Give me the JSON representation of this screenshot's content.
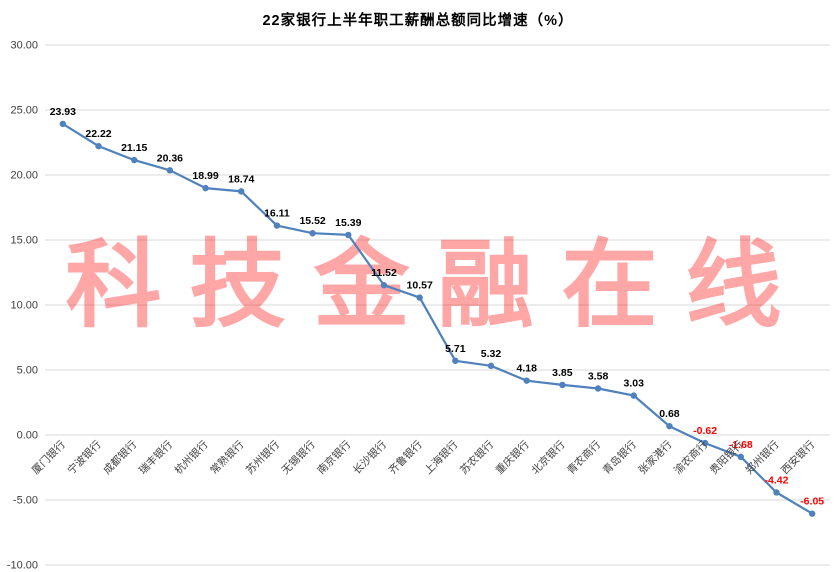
{
  "chart_data": {
    "type": "line",
    "title": "22家银行上半年职工薪酬总额同比增速（%）",
    "categories": [
      "厦门银行",
      "宁波银行",
      "成都银行",
      "瑞丰银行",
      "杭州银行",
      "常熟银行",
      "苏州银行",
      "无锡银行",
      "南京银行",
      "长沙银行",
      "齐鲁银行",
      "上海银行",
      "苏农银行",
      "重庆银行",
      "北京银行",
      "青农商行",
      "青岛银行",
      "张家港行",
      "渝农商行",
      "贵阳银行",
      "郑州银行",
      "西安银行"
    ],
    "values": [
      23.93,
      22.22,
      21.15,
      20.36,
      18.99,
      18.74,
      16.11,
      15.52,
      15.39,
      11.52,
      10.57,
      5.71,
      5.32,
      4.18,
      3.85,
      3.58,
      3.03,
      0.68,
      -0.62,
      -1.68,
      -4.42,
      -6.05
    ],
    "ylim": [
      -10,
      30
    ],
    "yticks": [
      30,
      25,
      20,
      15,
      10,
      5,
      0,
      -5,
      -10
    ],
    "ytick_labels": [
      "30.00",
      "25.00",
      "20.00",
      "15.00",
      "10.00",
      "5.00",
      "0.00",
      "-5.00",
      "-10.00"
    ],
    "grid": true,
    "legend": "none",
    "line_color": "#4f81bd",
    "marker_color": "#4f81bd",
    "gridline_color": "#d9d9d9",
    "tick_label_color": "#404040",
    "category_label_color": "#404040",
    "label_color_positive": "#000000",
    "label_color_negative": "#ff0000",
    "watermark": "科技金融在线",
    "watermark_color": "#ff0000"
  }
}
